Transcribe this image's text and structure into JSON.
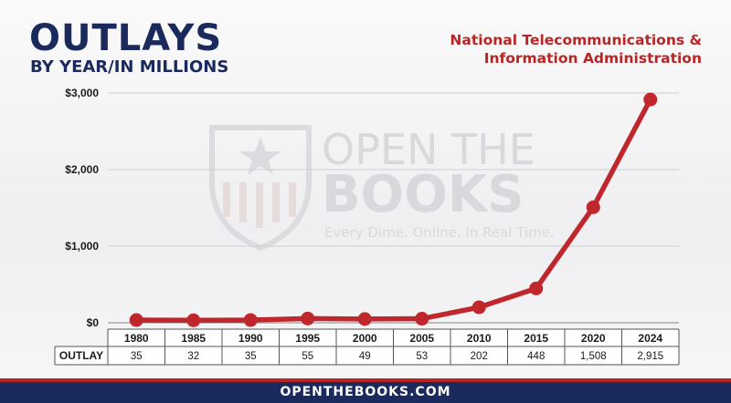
{
  "header": {
    "title": "OUTLAYS",
    "subtitle": "BY YEAR/IN MILLIONS",
    "agency_line1": "National Telecommunications &",
    "agency_line2": "Information Administration"
  },
  "watermark": {
    "line1": "OPEN THE",
    "line2": "BOOKS",
    "tagline": "Every Dime. Online. In Real Time."
  },
  "footer": {
    "url": "OPENTHEBOOKS.COM"
  },
  "colors": {
    "navy": "#1b2a5c",
    "red": "#b92525",
    "series": "#c0272d"
  },
  "chart_data": {
    "type": "line",
    "title": "OUTLAYS",
    "subtitle": "BY YEAR/IN MILLIONS",
    "x": [
      "1980",
      "1985",
      "1990",
      "1995",
      "2000",
      "2005",
      "2010",
      "2015",
      "2020",
      "2024"
    ],
    "series": [
      {
        "name": "OUTLAY",
        "values": [
          35,
          32,
          35,
          55,
          49,
          53,
          202,
          448,
          1508,
          2915
        ]
      }
    ],
    "value_labels": [
      "35",
      "32",
      "35",
      "55",
      "49",
      "53",
      "202",
      "448",
      "1,508",
      "2,915"
    ],
    "table_row_label": "OUTLAY",
    "yticks": [
      0,
      1000,
      2000,
      3000
    ],
    "ytick_labels": [
      "$0",
      "$1,000",
      "$2,000",
      "$3,000"
    ],
    "ylim": [
      0,
      3000
    ],
    "grid": true,
    "legend": "none"
  }
}
